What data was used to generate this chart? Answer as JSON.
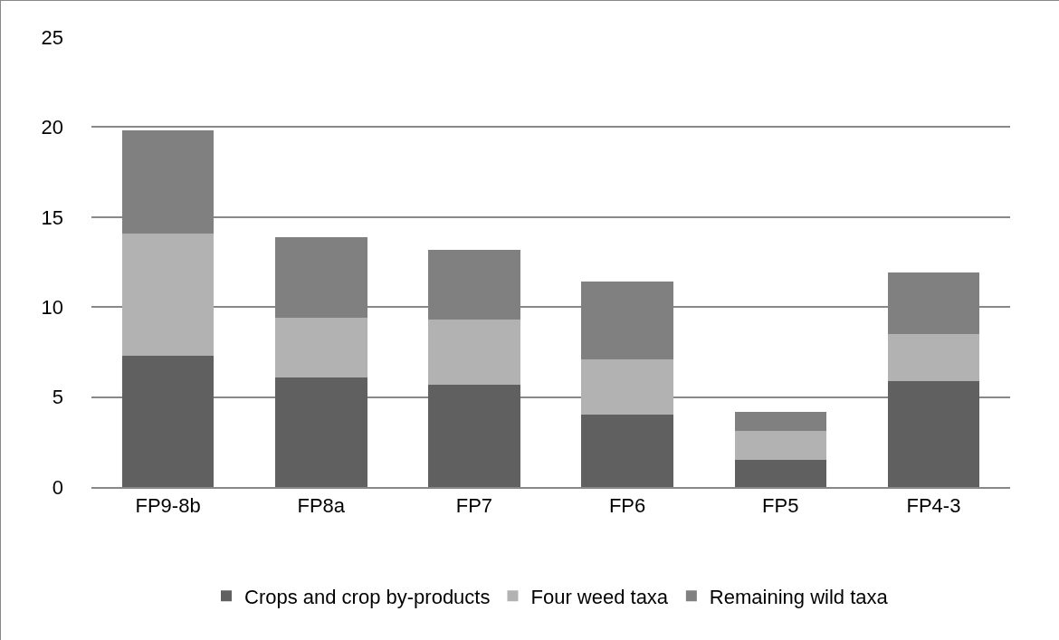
{
  "chart_data": {
    "type": "bar",
    "stacked": true,
    "categories": [
      "FP9-8b",
      "FP8a",
      "FP7",
      "FP6",
      "FP5",
      "FP4-3"
    ],
    "series": [
      {
        "name": "Crops and crop by-products",
        "color": "#606060",
        "values": [
          7.3,
          6.1,
          5.7,
          4.0,
          1.5,
          5.9
        ]
      },
      {
        "name": "Four weed taxa",
        "color": "#b2b2b2",
        "values": [
          6.8,
          3.3,
          3.6,
          3.1,
          1.6,
          2.6
        ]
      },
      {
        "name": "Remaining wild taxa",
        "color": "#808080",
        "values": [
          5.7,
          4.5,
          3.9,
          4.3,
          1.1,
          3.4
        ]
      }
    ],
    "ylim": [
      0,
      25
    ],
    "yticks": [
      0,
      5,
      10,
      15,
      20,
      25
    ],
    "grid": "y",
    "legend": "bottom"
  }
}
